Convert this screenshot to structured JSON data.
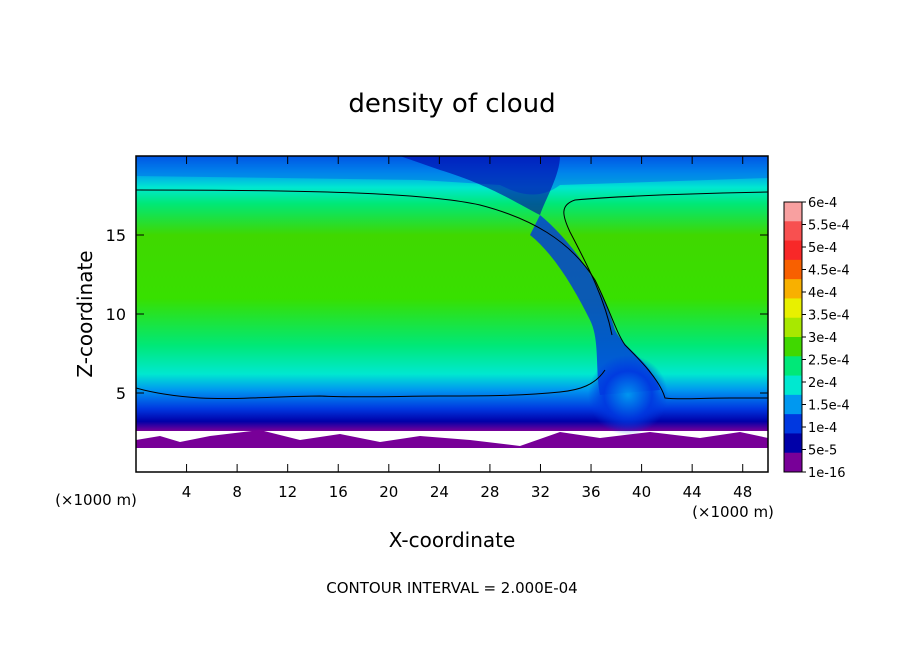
{
  "chart_data": {
    "type": "heatmap",
    "title": "density of cloud",
    "xlabel": "X-coordinate",
    "ylabel": "Z-coordinate",
    "x_unit": "(×1000 m)",
    "x_unit_right": "(×1000 m)",
    "footer": "CONTOUR INTERVAL = 2.000E-04",
    "xlim": [
      0,
      50
    ],
    "ylim": [
      0,
      20
    ],
    "xticks": [
      "4",
      "8",
      "12",
      "16",
      "20",
      "24",
      "28",
      "32",
      "36",
      "40",
      "44",
      "48"
    ],
    "xtick_values": [
      4,
      8,
      12,
      16,
      20,
      24,
      28,
      32,
      36,
      40,
      44,
      48
    ],
    "yticks": [
      "5",
      "10",
      "15"
    ],
    "ytick_values": [
      5,
      10,
      15
    ],
    "colorbar": {
      "labels": [
        "6e-4",
        "5.5e-4",
        "5e-4",
        "4.5e-4",
        "4e-4",
        "3.5e-4",
        "3e-4",
        "2.5e-4",
        "2e-4",
        "1.5e-4",
        "1e-4",
        "5e-5",
        "1e-16"
      ],
      "colors": [
        "#f8a0a0",
        "#f85050",
        "#f82828",
        "#f86000",
        "#f8b000",
        "#e8f000",
        "#a8e800",
        "#40d800",
        "#00e878",
        "#00e8d0",
        "#0098f0",
        "#0038e0",
        "#0000a8",
        "#780098"
      ]
    },
    "field_description_levels": {
      "top_band_z": [
        18,
        20
      ],
      "upper_contour_z": 17.8,
      "lower_contour_z": 4.9,
      "cloud_base_z": 2.0
    }
  }
}
